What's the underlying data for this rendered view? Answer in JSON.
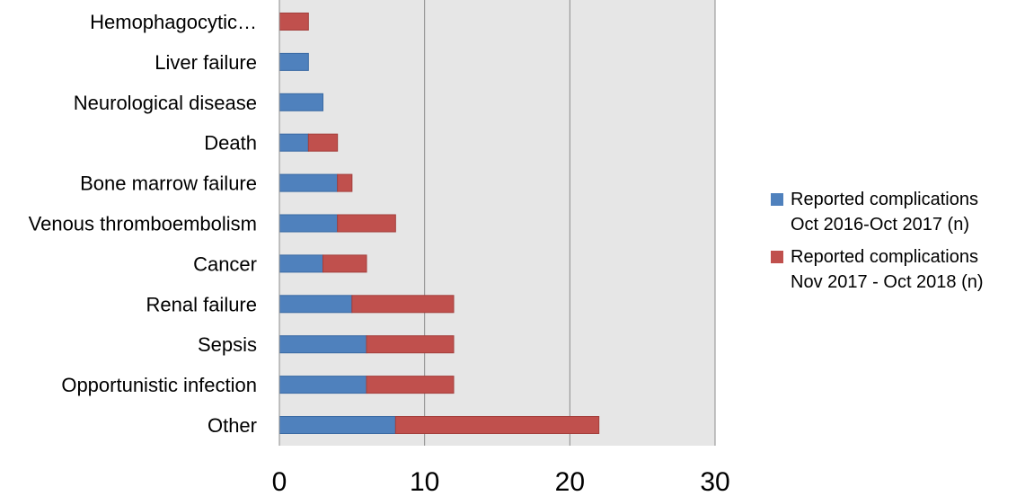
{
  "chart_data": {
    "type": "bar",
    "orientation": "horizontal",
    "stacked": true,
    "categories": [
      "Hemophagocytic…",
      "Liver failure",
      "Neurological disease",
      "Death",
      "Bone marrow  failure",
      "Venous thromboembolism",
      "Cancer",
      "Renal failure",
      "Sepsis",
      "Opportunistic infection",
      "Other"
    ],
    "series": [
      {
        "name": "Reported complications\nOct 2016-Oct 2017 (n)",
        "color": "#4f81bd",
        "values": [
          0,
          2,
          3,
          2,
          4,
          4,
          3,
          5,
          6,
          6,
          8
        ]
      },
      {
        "name": "Reported complications\nNov 2017  - Oct 2018 (n)",
        "color": "#c0504d",
        "values": [
          2,
          0,
          0,
          2,
          1,
          4,
          3,
          7,
          6,
          6,
          14
        ]
      }
    ],
    "xlim": [
      0,
      30
    ],
    "xticks": [
      0,
      10,
      20,
      30
    ],
    "grid": "vertical",
    "plot_background": "#e6e6e6",
    "legend_position": "right"
  }
}
